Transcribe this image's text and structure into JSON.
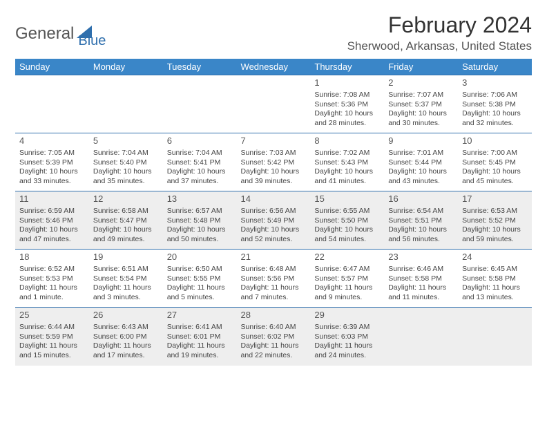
{
  "logo": {
    "text1": "General",
    "text2": "Blue",
    "accent_color": "#2f6fad"
  },
  "title": "February 2024",
  "location": "Sherwood, Arkansas, United States",
  "colors": {
    "header_bg": "#3a86c8",
    "header_text": "#ffffff",
    "row_border": "#2f6fad",
    "shaded_row": "#eeeeee",
    "plain_row": "#ffffff",
    "body_text": "#444444",
    "daynum_text": "#555555"
  },
  "day_headers": [
    "Sunday",
    "Monday",
    "Tuesday",
    "Wednesday",
    "Thursday",
    "Friday",
    "Saturday"
  ],
  "weeks": [
    {
      "shaded": false,
      "cells": [
        null,
        null,
        null,
        null,
        {
          "n": "1",
          "sunrise": "7:08 AM",
          "sunset": "5:36 PM",
          "daylight": "10 hours and 28 minutes."
        },
        {
          "n": "2",
          "sunrise": "7:07 AM",
          "sunset": "5:37 PM",
          "daylight": "10 hours and 30 minutes."
        },
        {
          "n": "3",
          "sunrise": "7:06 AM",
          "sunset": "5:38 PM",
          "daylight": "10 hours and 32 minutes."
        }
      ]
    },
    {
      "shaded": false,
      "cells": [
        {
          "n": "4",
          "sunrise": "7:05 AM",
          "sunset": "5:39 PM",
          "daylight": "10 hours and 33 minutes."
        },
        {
          "n": "5",
          "sunrise": "7:04 AM",
          "sunset": "5:40 PM",
          "daylight": "10 hours and 35 minutes."
        },
        {
          "n": "6",
          "sunrise": "7:04 AM",
          "sunset": "5:41 PM",
          "daylight": "10 hours and 37 minutes."
        },
        {
          "n": "7",
          "sunrise": "7:03 AM",
          "sunset": "5:42 PM",
          "daylight": "10 hours and 39 minutes."
        },
        {
          "n": "8",
          "sunrise": "7:02 AM",
          "sunset": "5:43 PM",
          "daylight": "10 hours and 41 minutes."
        },
        {
          "n": "9",
          "sunrise": "7:01 AM",
          "sunset": "5:44 PM",
          "daylight": "10 hours and 43 minutes."
        },
        {
          "n": "10",
          "sunrise": "7:00 AM",
          "sunset": "5:45 PM",
          "daylight": "10 hours and 45 minutes."
        }
      ]
    },
    {
      "shaded": true,
      "cells": [
        {
          "n": "11",
          "sunrise": "6:59 AM",
          "sunset": "5:46 PM",
          "daylight": "10 hours and 47 minutes."
        },
        {
          "n": "12",
          "sunrise": "6:58 AM",
          "sunset": "5:47 PM",
          "daylight": "10 hours and 49 minutes."
        },
        {
          "n": "13",
          "sunrise": "6:57 AM",
          "sunset": "5:48 PM",
          "daylight": "10 hours and 50 minutes."
        },
        {
          "n": "14",
          "sunrise": "6:56 AM",
          "sunset": "5:49 PM",
          "daylight": "10 hours and 52 minutes."
        },
        {
          "n": "15",
          "sunrise": "6:55 AM",
          "sunset": "5:50 PM",
          "daylight": "10 hours and 54 minutes."
        },
        {
          "n": "16",
          "sunrise": "6:54 AM",
          "sunset": "5:51 PM",
          "daylight": "10 hours and 56 minutes."
        },
        {
          "n": "17",
          "sunrise": "6:53 AM",
          "sunset": "5:52 PM",
          "daylight": "10 hours and 59 minutes."
        }
      ]
    },
    {
      "shaded": false,
      "cells": [
        {
          "n": "18",
          "sunrise": "6:52 AM",
          "sunset": "5:53 PM",
          "daylight": "11 hours and 1 minute."
        },
        {
          "n": "19",
          "sunrise": "6:51 AM",
          "sunset": "5:54 PM",
          "daylight": "11 hours and 3 minutes."
        },
        {
          "n": "20",
          "sunrise": "6:50 AM",
          "sunset": "5:55 PM",
          "daylight": "11 hours and 5 minutes."
        },
        {
          "n": "21",
          "sunrise": "6:48 AM",
          "sunset": "5:56 PM",
          "daylight": "11 hours and 7 minutes."
        },
        {
          "n": "22",
          "sunrise": "6:47 AM",
          "sunset": "5:57 PM",
          "daylight": "11 hours and 9 minutes."
        },
        {
          "n": "23",
          "sunrise": "6:46 AM",
          "sunset": "5:58 PM",
          "daylight": "11 hours and 11 minutes."
        },
        {
          "n": "24",
          "sunrise": "6:45 AM",
          "sunset": "5:58 PM",
          "daylight": "11 hours and 13 minutes."
        }
      ]
    },
    {
      "shaded": true,
      "cells": [
        {
          "n": "25",
          "sunrise": "6:44 AM",
          "sunset": "5:59 PM",
          "daylight": "11 hours and 15 minutes."
        },
        {
          "n": "26",
          "sunrise": "6:43 AM",
          "sunset": "6:00 PM",
          "daylight": "11 hours and 17 minutes."
        },
        {
          "n": "27",
          "sunrise": "6:41 AM",
          "sunset": "6:01 PM",
          "daylight": "11 hours and 19 minutes."
        },
        {
          "n": "28",
          "sunrise": "6:40 AM",
          "sunset": "6:02 PM",
          "daylight": "11 hours and 22 minutes."
        },
        {
          "n": "29",
          "sunrise": "6:39 AM",
          "sunset": "6:03 PM",
          "daylight": "11 hours and 24 minutes."
        },
        null,
        null
      ]
    }
  ],
  "labels": {
    "sunrise": "Sunrise:",
    "sunset": "Sunset:",
    "daylight": "Daylight:"
  }
}
